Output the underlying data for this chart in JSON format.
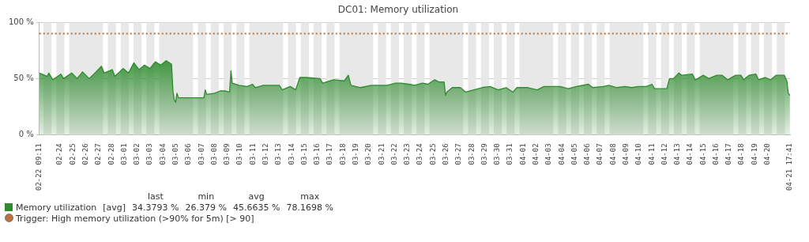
{
  "chart_data": {
    "type": "area",
    "title": "DC01: Memory utilization",
    "xlim": [
      "--02-22T09:11",
      "--04-21T17:41"
    ],
    "ylim": [
      0,
      100
    ],
    "yticks": [
      {
        "value": 0,
        "label": "0 %"
      },
      {
        "value": 50,
        "label": "50 %"
      },
      {
        "value": 100,
        "label": "100 %"
      }
    ],
    "xticks": [
      {
        "value": "--02-22T09:11",
        "label": "02-22 09:11"
      },
      {
        "value": "--02-24",
        "label": "02-24"
      },
      {
        "value": "--02-25",
        "label": "02-25"
      },
      {
        "value": "--02-26",
        "label": "02-26"
      },
      {
        "value": "--02-27",
        "label": "02-27"
      },
      {
        "value": "--02-28",
        "label": "02-28"
      },
      {
        "value": "--03-01",
        "label": "03-01"
      },
      {
        "value": "--03-02",
        "label": "03-02"
      },
      {
        "value": "--03-03",
        "label": "03-03"
      },
      {
        "value": "--03-04",
        "label": "03-04"
      },
      {
        "value": "--03-05",
        "label": "03-05"
      },
      {
        "value": "--03-06",
        "label": "03-06"
      },
      {
        "value": "--03-07",
        "label": "03-07"
      },
      {
        "value": "--03-08",
        "label": "03-08"
      },
      {
        "value": "--03-09",
        "label": "03-09"
      },
      {
        "value": "--03-10",
        "label": "03-10"
      },
      {
        "value": "--03-11",
        "label": "03-11"
      },
      {
        "value": "--03-12",
        "label": "03-12"
      },
      {
        "value": "--03-13",
        "label": "03-13"
      },
      {
        "value": "--03-14",
        "label": "03-14"
      },
      {
        "value": "--03-15",
        "label": "03-15"
      },
      {
        "value": "--03-16",
        "label": "03-16"
      },
      {
        "value": "--03-17",
        "label": "03-17"
      },
      {
        "value": "--03-18",
        "label": "03-18"
      },
      {
        "value": "--03-19",
        "label": "03-19"
      },
      {
        "value": "--03-20",
        "label": "03-20"
      },
      {
        "value": "--03-21",
        "label": "03-21"
      },
      {
        "value": "--03-22",
        "label": "03-22"
      },
      {
        "value": "--03-23",
        "label": "03-23"
      },
      {
        "value": "--03-24",
        "label": "03-24"
      },
      {
        "value": "--03-25",
        "label": "03-25"
      },
      {
        "value": "--03-26",
        "label": "03-26"
      },
      {
        "value": "--03-27",
        "label": "03-27"
      },
      {
        "value": "--03-28",
        "label": "03-28"
      },
      {
        "value": "--03-29",
        "label": "03-29"
      },
      {
        "value": "--03-30",
        "label": "03-30"
      },
      {
        "value": "--03-31",
        "label": "03-31"
      },
      {
        "value": "--04-01",
        "label": "04-01"
      },
      {
        "value": "--04-02",
        "label": "04-02"
      },
      {
        "value": "--04-03",
        "label": "04-03"
      },
      {
        "value": "--04-04",
        "label": "04-04"
      },
      {
        "value": "--04-05",
        "label": "04-05"
      },
      {
        "value": "--04-06",
        "label": "04-06"
      },
      {
        "value": "--04-07",
        "label": "04-07"
      },
      {
        "value": "--04-08",
        "label": "04-08"
      },
      {
        "value": "--04-09",
        "label": "04-09"
      },
      {
        "value": "--04-10",
        "label": "04-10"
      },
      {
        "value": "--04-11",
        "label": "04-11"
      },
      {
        "value": "--04-12",
        "label": "04-12"
      },
      {
        "value": "--04-13",
        "label": "04-13"
      },
      {
        "value": "--04-14",
        "label": "04-14"
      },
      {
        "value": "--04-15",
        "label": "04-15"
      },
      {
        "value": "--04-16",
        "label": "04-16"
      },
      {
        "value": "--04-17",
        "label": "04-17"
      },
      {
        "value": "--04-18",
        "label": "04-18"
      },
      {
        "value": "--04-19",
        "label": "04-19"
      },
      {
        "value": "--04-20",
        "label": "04-20"
      },
      {
        "value": "--04-21T17:41",
        "label": "04-21 17:41"
      }
    ],
    "grid": "y",
    "legend": "bottom",
    "marker": "none",
    "series": [
      {
        "name": "Memory utilization",
        "color": "#2e8b2e",
        "x": [
          "--02-22T09:11",
          "--02-23T00:14",
          "--02-23T02:53",
          "--02-23T10:19",
          "--02-24T01:26",
          "--02-24T06:29",
          "--02-24T21:36",
          "--02-25T07:41",
          "--02-25T17:46",
          "--02-26T06:14",
          "--02-26T18:58",
          "--02-27T05:02",
          "--02-27T10:05",
          "--02-28T01:12",
          "--02-28T06:14",
          "--02-28T21:22",
          "--03-01T07:26",
          "--03-01T17:31",
          "--03-02T03:22",
          "--03-02T13:26",
          "--03-02T23:31",
          "--03-03T09:36",
          "--03-03T19:41",
          "--03-04T05:46",
          "--03-04T15:50",
          "--03-04T18:29",
          "--03-04T20:53",
          "--03-04T23:31",
          "--03-05T01:55",
          "--03-05T04:34",
          "--03-07T04:19",
          "--03-07T06:43",
          "--03-07T09:22",
          "--03-08T00:29",
          "--03-08T10:34",
          "--03-08T20:38",
          "--03-09T04:05",
          "--03-09T06:43",
          "--03-09T09:07",
          "--03-09T21:50",
          "--03-10T12:58",
          "--03-10T22:48",
          "--03-11T03:50",
          "--03-11T19:12",
          "--03-13T01:12",
          "--03-13T06:14",
          "--03-13T21:22",
          "--03-14T07:26",
          "--03-14T15:07",
          "--03-15T03:36",
          "--03-16T04:48",
          "--03-16T09:50",
          "--03-17T06:00",
          "--03-18T02:10",
          "--03-18T09:36",
          "--03-18T14:38",
          "--03-19T08:24",
          "--03-20T04:34",
          "--03-21T00:43",
          "--03-21T10:34",
          "--03-22T01:41",
          "--03-22T11:46",
          "--03-23T02:53",
          "--03-23T12:58",
          "--03-24T04:05",
          "--03-24T14:10",
          "--03-25T02:53",
          "--03-25T10:19",
          "--03-25T20:24",
          "--03-25T23:02",
          "--03-26T01:26",
          "--03-26T11:31",
          "--03-27T02:38",
          "--03-27T12:43",
          "--03-28T03:50",
          "--03-28T18:58",
          "--03-29T10:05",
          "--03-30T01:12",
          "--03-30T16:05",
          "--03-31T04:48",
          "--03-31T12:14",
          "--04-01T08:24",
          "--04-02T02:10",
          "--04-02T14:38",
          "--04-03T00:43",
          "--04-03T20:53",
          "--04-04T12:00",
          "--04-05T03:07",
          "--04-06T01:41",
          "--04-06T09:22",
          "--04-07T05:31",
          "--04-07T15:36",
          "--04-08T06:43",
          "--04-08T21:50",
          "--04-09T10:19",
          "--04-09T22:48",
          "--04-10T13:55",
          "--04-11T00:00",
          "--04-11T05:02",
          "--04-11T15:07",
          "--04-12T03:50",
          "--04-12T08:53",
          "--04-12T16:19",
          "--04-13T02:24",
          "--04-13T07:26",
          "--04-14T03:36",
          "--04-14T08:38",
          "--04-14T13:41",
          "--04-14T23:46",
          "--04-15T09:50",
          "--04-16T00:58",
          "--04-16T11:02",
          "--04-16T21:07",
          "--04-17T12:14",
          "--04-17T22:05",
          "--04-18T03:07",
          "--04-18T13:12",
          "--04-19T01:55",
          "--04-19T06:58",
          "--04-19T19:26",
          "--04-20T05:31",
          "--04-20T15:36",
          "--04-21T06:43",
          "--04-21T11:46",
          "--04-21T14:24",
          "--04-21T17:31"
        ],
        "values": [
          55,
          52,
          55,
          49,
          54,
          50,
          55,
          50,
          56,
          50,
          56,
          61,
          55,
          58,
          52,
          59,
          55,
          64,
          58,
          62,
          59,
          65,
          62,
          66,
          63,
          39,
          31,
          29,
          37,
          33,
          33,
          40,
          36,
          37,
          39,
          39,
          38,
          57,
          46,
          44,
          43,
          45,
          42,
          44,
          44,
          40,
          43,
          40,
          51,
          51,
          50,
          46,
          49,
          48,
          53,
          44,
          42,
          44,
          44,
          44,
          46,
          46,
          45,
          44,
          46,
          45,
          49,
          47,
          47,
          35,
          38,
          42,
          42,
          38,
          40,
          42,
          43,
          40,
          42,
          38,
          42,
          42,
          40,
          43,
          43,
          43,
          41,
          43,
          45,
          42,
          43,
          44,
          42,
          43,
          42,
          43,
          43,
          45,
          41,
          41,
          41,
          50,
          50,
          55,
          53,
          54,
          49,
          50,
          53,
          50,
          53,
          53,
          49,
          53,
          53,
          49,
          53,
          54,
          49,
          51,
          49,
          53,
          53,
          48,
          37,
          35
        ]
      }
    ],
    "ref_lines": [
      {
        "axis": "y",
        "value": 90,
        "label": "Trigger: High memory utilization (>90% for 5m) [> 90]",
        "color": "#c0703a",
        "line_style": "dotted"
      }
    ],
    "annotations": [
      "[avg]",
      "last",
      "min",
      "avg",
      "max",
      "34.3793 %",
      "26.379 %",
      "45.6635 %",
      "78.1698 %"
    ],
    "bands": [
      {
        "axis": "x",
        "from": "--02-22T17:00",
        "to": "--02-23T08:00",
        "color": "#e8e8e8"
      },
      {
        "axis": "x",
        "from": "--02-23T17:00",
        "to": "--02-24T08:00",
        "color": "#e8e8e8"
      },
      {
        "axis": "x",
        "from": "--02-24T17:00",
        "to": "--02-27T08:00",
        "color": "#e8e8e8"
      },
      {
        "axis": "x",
        "from": "--02-27T17:00",
        "to": "--02-28T08:00",
        "color": "#e8e8e8"
      },
      {
        "axis": "x",
        "from": "--02-28T17:00",
        "to": "--03-01T08:00",
        "color": "#e8e8e8"
      },
      {
        "axis": "x",
        "from": "--03-01T17:00",
        "to": "--03-02T08:00",
        "color": "#e8e8e8"
      },
      {
        "axis": "x",
        "from": "--03-02T17:00",
        "to": "--03-03T08:00",
        "color": "#e8e8e8"
      },
      {
        "axis": "x",
        "from": "--03-03T17:00",
        "to": "--03-06T08:00",
        "color": "#e8e8e8"
      },
      {
        "axis": "x",
        "from": "--03-06T17:00",
        "to": "--03-07T08:00",
        "color": "#e8e8e8"
      },
      {
        "axis": "x",
        "from": "--03-07T17:00",
        "to": "--03-08T08:00",
        "color": "#e8e8e8"
      },
      {
        "axis": "x",
        "from": "--03-08T17:00",
        "to": "--03-09T08:00",
        "color": "#e8e8e8"
      },
      {
        "axis": "x",
        "from": "--03-09T17:00",
        "to": "--03-10T08:00",
        "color": "#e8e8e8"
      },
      {
        "axis": "x",
        "from": "--03-10T17:00",
        "to": "--03-13T08:00",
        "color": "#e8e8e8"
      },
      {
        "axis": "x",
        "from": "--03-13T17:00",
        "to": "--03-14T08:00",
        "color": "#e8e8e8"
      },
      {
        "axis": "x",
        "from": "--03-14T17:00",
        "to": "--03-15T08:00",
        "color": "#e8e8e8"
      },
      {
        "axis": "x",
        "from": "--03-15T17:00",
        "to": "--03-16T08:00",
        "color": "#e8e8e8"
      },
      {
        "axis": "x",
        "from": "--03-16T17:00",
        "to": "--03-17T08:00",
        "color": "#e8e8e8"
      },
      {
        "axis": "x",
        "from": "--03-17T17:00",
        "to": "--03-20T08:00",
        "color": "#e8e8e8"
      },
      {
        "axis": "x",
        "from": "--03-20T17:00",
        "to": "--03-21T08:00",
        "color": "#e8e8e8"
      },
      {
        "axis": "x",
        "from": "--03-21T17:00",
        "to": "--03-22T08:00",
        "color": "#e8e8e8"
      },
      {
        "axis": "x",
        "from": "--03-22T17:00",
        "to": "--03-23T08:00",
        "color": "#e8e8e8"
      },
      {
        "axis": "x",
        "from": "--03-23T17:00",
        "to": "--03-24T08:00",
        "color": "#e8e8e8"
      },
      {
        "axis": "x",
        "from": "--03-24T17:00",
        "to": "--03-27T08:00",
        "color": "#e8e8e8"
      },
      {
        "axis": "x",
        "from": "--03-27T17:00",
        "to": "--03-28T08:00",
        "color": "#e8e8e8"
      },
      {
        "axis": "x",
        "from": "--03-28T17:00",
        "to": "--03-29T08:00",
        "color": "#e8e8e8"
      },
      {
        "axis": "x",
        "from": "--03-29T17:00",
        "to": "--03-30T08:00",
        "color": "#e8e8e8"
      },
      {
        "axis": "x",
        "from": "--03-30T17:00",
        "to": "--03-31T08:00",
        "color": "#e8e8e8"
      },
      {
        "axis": "x",
        "from": "--03-31T17:00",
        "to": "--04-03T08:00",
        "color": "#e8e8e8"
      },
      {
        "axis": "x",
        "from": "--04-03T17:00",
        "to": "--04-04T08:00",
        "color": "#e8e8e8"
      },
      {
        "axis": "x",
        "from": "--04-04T17:00",
        "to": "--04-05T08:00",
        "color": "#e8e8e8"
      },
      {
        "axis": "x",
        "from": "--04-05T17:00",
        "to": "--04-06T08:00",
        "color": "#e8e8e8"
      },
      {
        "axis": "x",
        "from": "--04-06T17:00",
        "to": "--04-07T08:00",
        "color": "#e8e8e8"
      },
      {
        "axis": "x",
        "from": "--04-07T17:00",
        "to": "--04-10T08:00",
        "color": "#e8e8e8"
      },
      {
        "axis": "x",
        "from": "--04-10T17:00",
        "to": "--04-11T08:00",
        "color": "#e8e8e8"
      },
      {
        "axis": "x",
        "from": "--04-11T17:00",
        "to": "--04-12T08:00",
        "color": "#e8e8e8"
      },
      {
        "axis": "x",
        "from": "--04-12T17:00",
        "to": "--04-13T08:00",
        "color": "#e8e8e8"
      },
      {
        "axis": "x",
        "from": "--04-13T17:00",
        "to": "--04-14T08:00",
        "color": "#e8e8e8"
      },
      {
        "axis": "x",
        "from": "--04-14T17:00",
        "to": "--04-17T08:00",
        "color": "#e8e8e8"
      },
      {
        "axis": "x",
        "from": "--04-17T17:00",
        "to": "--04-18T08:00",
        "color": "#e8e8e8"
      },
      {
        "axis": "x",
        "from": "--04-18T17:00",
        "to": "--04-19T08:00",
        "color": "#e8e8e8"
      },
      {
        "axis": "x",
        "from": "--04-19T17:00",
        "to": "--04-20T08:00",
        "color": "#e8e8e8"
      },
      {
        "axis": "x",
        "from": "--04-20T17:00",
        "to": "--04-21T08:00",
        "color": "#e8e8e8"
      }
    ]
  }
}
